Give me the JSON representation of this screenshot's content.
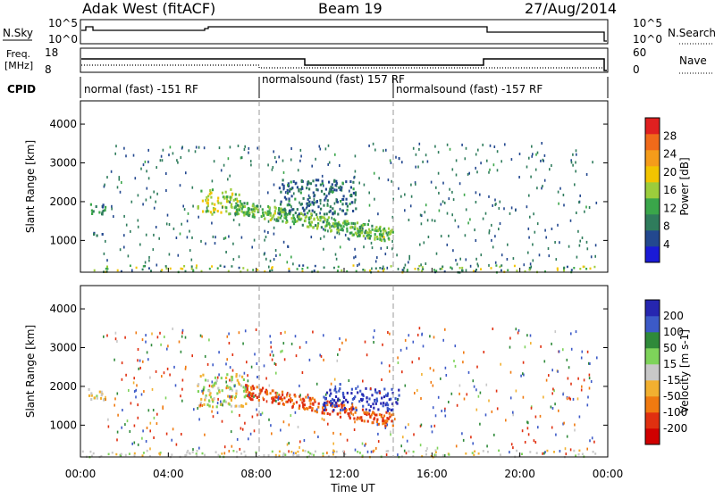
{
  "header": {
    "station": "Adak West (fitACF)",
    "beam": "Beam 19",
    "date": "27/Aug/2014"
  },
  "strip_labels": {
    "nsky": "N.Sky",
    "nsearch": "N.Search",
    "freq_top": "Freq.",
    "freq_unit": "[MHz]",
    "nave": "Nave",
    "cpid": "CPID",
    "nsky_ticks": [
      "10^5",
      "10^0"
    ],
    "nsearch_ticks": [
      "10^5",
      "10^0"
    ],
    "freq_ticks": [
      "18",
      "8"
    ],
    "nave_ticks": [
      "60",
      "0"
    ]
  },
  "cpid_segments": [
    {
      "label": "normal (fast) -151 RF",
      "start_hour": 0
    },
    {
      "label": "normalsound (fast) 157 RF",
      "start_hour": 8
    },
    {
      "label": "normalsound (fast) -157 RF",
      "start_hour": 14
    }
  ],
  "axes": {
    "x_title": "Time UT",
    "x_ticks": [
      "00:00",
      "04:00",
      "08:00",
      "12:00",
      "16:00",
      "20:00",
      "00:00"
    ],
    "x_range_hours": [
      0,
      24
    ],
    "y_title": "Slant Range [km]",
    "y_ticks": [
      "1000",
      "2000",
      "3000",
      "4000"
    ],
    "y_range_km": [
      180,
      4600
    ]
  },
  "power_scale": {
    "title": "Power [dB]",
    "ticks": [
      "4",
      "8",
      "12",
      "16",
      "20",
      "24",
      "28"
    ],
    "colors": [
      "#1a1ad6",
      "#23488f",
      "#2f7c5c",
      "#3aa64a",
      "#9ccd3c",
      "#f2c400",
      "#f59c1a",
      "#f06a1a",
      "#e02020"
    ]
  },
  "velocity_scale": {
    "title": "Velocity [m s-1]",
    "ticks": [
      "200",
      "100",
      "50",
      "15",
      "-15",
      "-50",
      "-100",
      "-200"
    ],
    "colors": [
      "#2626b0",
      "#3c5ac8",
      "#2f8a3a",
      "#7ed35a",
      "#c8c8c8",
      "#f2b030",
      "#f07a10",
      "#e03010",
      "#d00000"
    ]
  },
  "chart_data": [
    {
      "type": "heatmap",
      "title": "",
      "quantity": "Power",
      "unit": "dB",
      "xlabel": "Time UT",
      "ylabel": "Slant Range [km]",
      "xlim_hours": [
        0,
        24
      ],
      "ylim_km": [
        180,
        4600
      ],
      "features": [
        {
          "t_start": 0.3,
          "t_end": 1.1,
          "r_low": 1650,
          "r_high": 2000,
          "dB": 8
        },
        {
          "t_start": 0.3,
          "t_end": 1.0,
          "r_low": 1150,
          "r_high": 1250,
          "dB": 6
        },
        {
          "t_start": 5.3,
          "t_end": 7.2,
          "r_low": 1700,
          "r_high": 2350,
          "dB": 14
        },
        {
          "t_start": 7.0,
          "t_end": 14.2,
          "r_low": 1150,
          "r_high": 2000,
          "dB": 12
        },
        {
          "t_start": 9.0,
          "t_end": 12.5,
          "r_low": 1700,
          "r_high": 2600,
          "dB": 6
        }
      ]
    },
    {
      "type": "heatmap",
      "title": "",
      "quantity": "Velocity",
      "unit": "m/s",
      "xlabel": "Time UT",
      "ylabel": "Slant Range [km]",
      "xlim_hours": [
        0,
        24
      ],
      "ylim_km": [
        180,
        4600
      ],
      "features": [
        {
          "t_start": 0.3,
          "t_end": 1.1,
          "r_low": 1650,
          "r_high": 2000,
          "velocity": 0
        },
        {
          "t_start": 5.3,
          "t_end": 7.5,
          "r_low": 1500,
          "r_high": 2350,
          "velocity": 0
        },
        {
          "t_start": 7.5,
          "t_end": 14.2,
          "r_low": 1100,
          "r_high": 1700,
          "velocity": -80
        },
        {
          "t_start": 11.0,
          "t_end": 14.5,
          "r_low": 1400,
          "r_high": 2000,
          "velocity": 150
        }
      ]
    }
  ]
}
